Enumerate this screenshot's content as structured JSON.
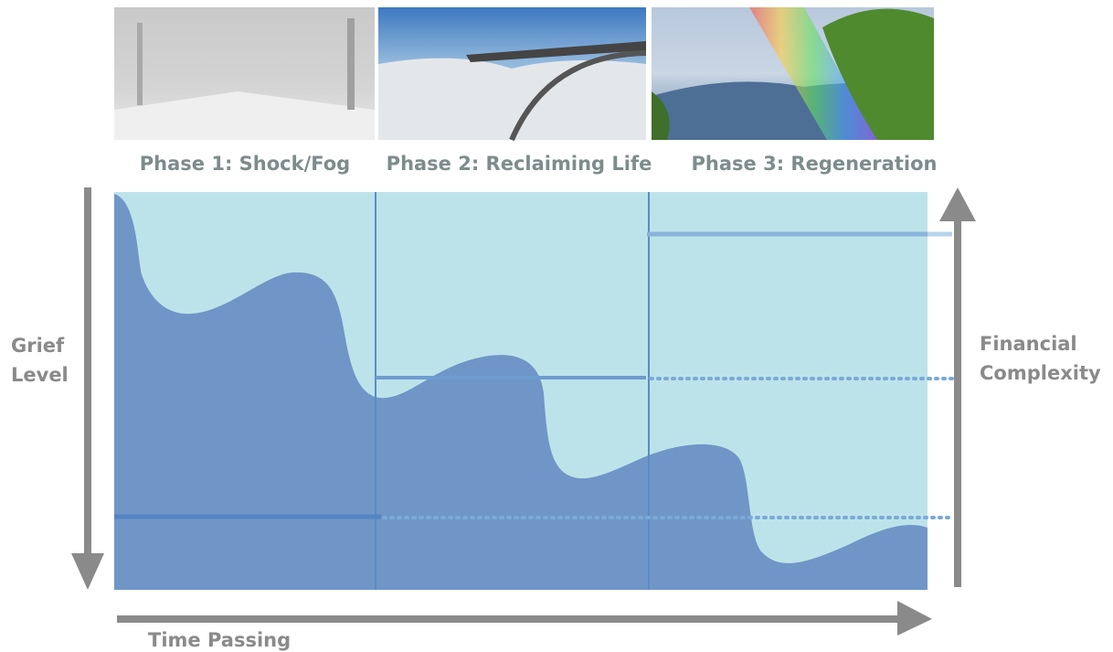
{
  "phases": [
    {
      "label": "Phase 1: Shock/Fog"
    },
    {
      "label": "Phase 2: Reclaiming Life"
    },
    {
      "label": "Phase 3: Regeneration"
    }
  ],
  "axes": {
    "left": [
      "Grief",
      "Level"
    ],
    "right": [
      "Financial",
      "Complexity"
    ],
    "bottom": "Time Passing"
  }
}
